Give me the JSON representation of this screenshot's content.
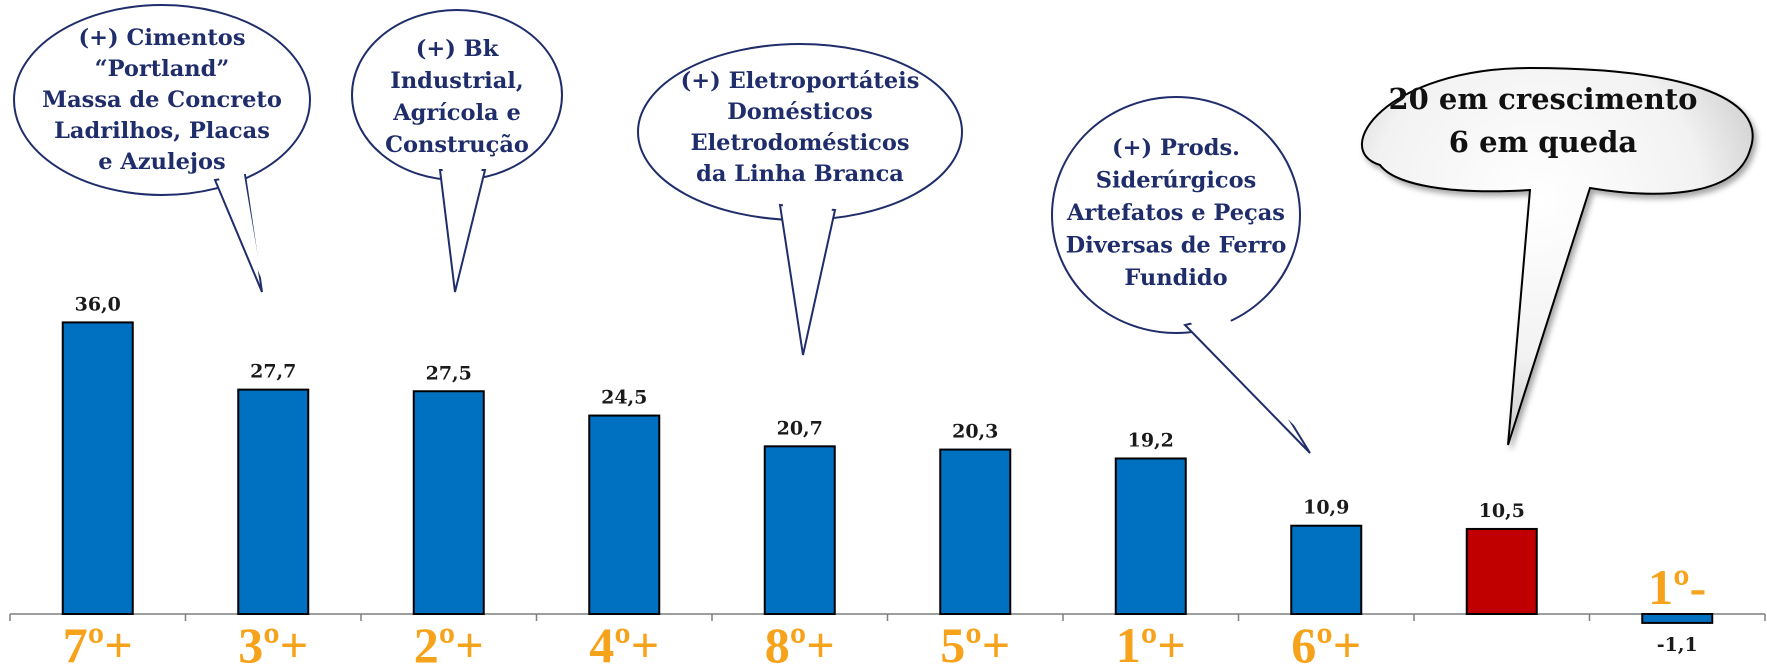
{
  "chart_data": {
    "type": "bar",
    "values": [
      36.0,
      27.7,
      27.5,
      24.5,
      20.7,
      20.3,
      19.2,
      10.9,
      10.5,
      -1.1
    ],
    "value_labels": [
      "36,0",
      "27,7",
      "27,5",
      "24,5",
      "20,7",
      "20,3",
      "19,2",
      "10,9",
      "10,5",
      "-1,1"
    ],
    "category_labels": [
      "7º+",
      "3º+",
      "2º+",
      "4º+",
      "8º+",
      "5º+",
      "1º+",
      "6º+",
      "",
      "1º-"
    ],
    "highlight_index": 8,
    "colors": {
      "bar": "#0070c0",
      "highlight": "#c00000",
      "category_label": "#f7a21b",
      "bubble_text": "#1f2d6b",
      "bubble_border": "#1f2d6b"
    },
    "grid": false,
    "legend": "none"
  },
  "callouts": [
    {
      "target_index": 1,
      "lines": [
        "(+) Cimentos",
        "“Portland”",
        "Massa de Concreto",
        "Ladrilhos, Placas",
        "e Azulejos"
      ]
    },
    {
      "target_index": 2,
      "lines": [
        "(+) Bk",
        "Industrial,",
        "Agrícola e",
        "Construção"
      ]
    },
    {
      "target_index": 4,
      "lines": [
        "(+) Eletroportáteis",
        "Domésticos",
        "Eletrodomésticos",
        "da Linha Branca"
      ]
    },
    {
      "target_index": 7,
      "lines": [
        "(+) Prods.",
        "Siderúrgicos",
        "Artefatos e Peças",
        "Diversas de Ferro",
        "Fundido"
      ]
    }
  ],
  "summary": {
    "lines": [
      "20 em crescimento",
      "6 em queda"
    ]
  }
}
